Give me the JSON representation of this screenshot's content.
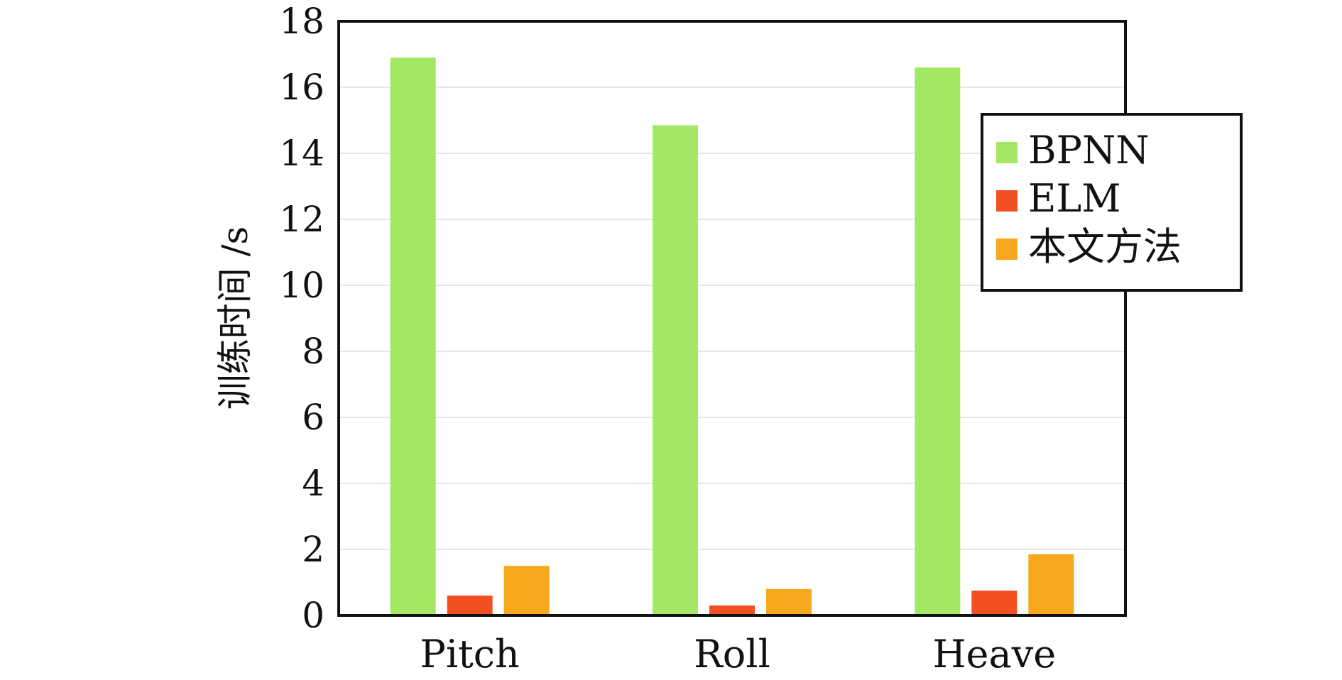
{
  "chart_data": {
    "type": "bar",
    "title": "",
    "xlabel": "",
    "ylabel": "训练时间 /s",
    "categories": [
      "Pitch",
      "Roll",
      "Heave"
    ],
    "series": [
      {
        "name": "BPNN",
        "values": [
          16.9,
          14.85,
          16.6
        ],
        "color": "#a2e862"
      },
      {
        "name": "ELM",
        "values": [
          0.6,
          0.3,
          0.75
        ],
        "color": "#f25022"
      },
      {
        "name": "本文方法",
        "values": [
          1.5,
          0.8,
          1.85
        ],
        "color": "#f7a81c"
      }
    ],
    "ylim": [
      0,
      18
    ],
    "yticks": [
      0,
      2,
      4,
      6,
      8,
      10,
      12,
      14,
      16,
      18
    ],
    "grid": true,
    "legend_position": "top-right"
  }
}
